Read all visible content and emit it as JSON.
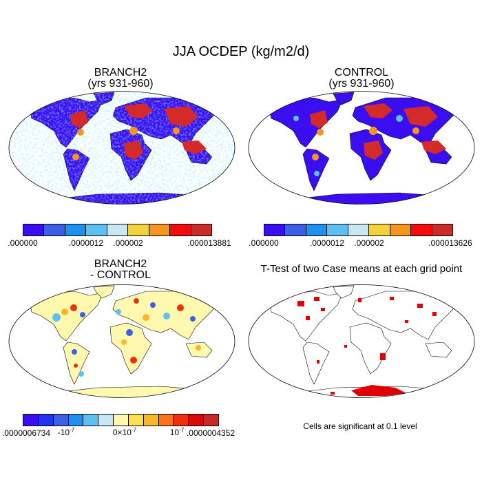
{
  "title": "JJA OCDEP (kg/m2/d)",
  "panels": {
    "branch": {
      "title1": "BRANCH2",
      "title2": "(yrs 931-960)"
    },
    "control": {
      "title1": "CONTROL",
      "title2": "(yrs 931-960)"
    },
    "diff": {
      "title1": "BRANCH2",
      "title2": "- CONTROL"
    },
    "ttest": {
      "title1": "T-Test of two Case means at each grid point"
    }
  },
  "colorbars": {
    "seq_colors": [
      "#3a0ef0",
      "#3d5fe8",
      "#1d90f0",
      "#5cc0f0",
      "#c8e6f4",
      "#f4d23c",
      "#f5941e",
      "#f20c0c",
      "#cd2a2a"
    ],
    "branch_labels": [
      ".000000",
      ".0000012",
      ".000002",
      ".000013881"
    ],
    "control_labels": [
      ".000000",
      ".0000012",
      ".000002",
      ".000013626"
    ],
    "div_colors": [
      "#3a0ef0",
      "#2233ee",
      "#3d5fe8",
      "#1d90f0",
      "#5cc0f0",
      "#c8e6f4",
      "#fff9b0",
      "#fde04e",
      "#fbb52a",
      "#f7761c",
      "#f0300c",
      "#d60a0a",
      "#c82828"
    ],
    "diff_labels": [
      ".0000006734",
      "-10",
      "0×10",
      "10",
      ".0000004352"
    ],
    "diff_exps": [
      "-7",
      "-7",
      "-7"
    ]
  },
  "note": "Cells are significant at 0.1 level"
}
